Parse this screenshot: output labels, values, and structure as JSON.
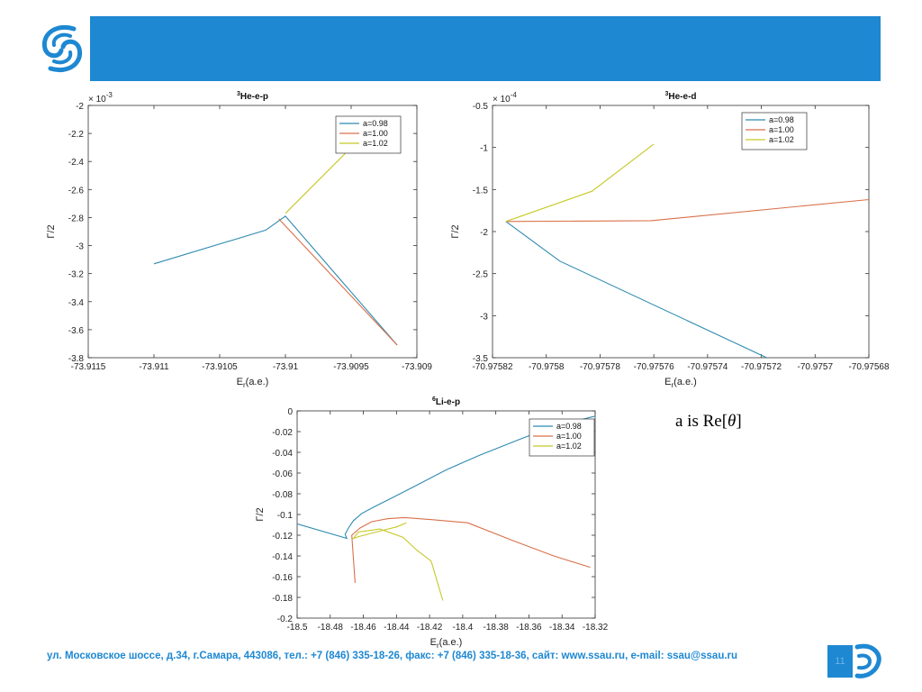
{
  "colors": {
    "brand": "#1E88D2",
    "series": [
      "#2E8BB0",
      "#D9704A",
      "#C8C828"
    ]
  },
  "note": {
    "prefix": "a is Re[",
    "theta": "θ",
    "suffix": "]"
  },
  "footer": {
    "text": "ул. Московское шоссе, д.34, г.Самара, 443086, тел.: +7 (846) 335-18-26, факс: +7 (846) 335-18-36, сайт: www.ssau.ru, e-mail: ssau@ssau.ru",
    "page": "11"
  },
  "chart_data": [
    {
      "type": "line",
      "title_sup": "3",
      "title": "He-e-p",
      "ylabel": "Γ/2",
      "xlabel_main": "E",
      "xlabel_sub": "r",
      "xlabel_rest": "(a.e.)",
      "exponent_base": "× 10",
      "exponent": "-3",
      "xlim": [
        -73.9115,
        -73.909
      ],
      "ylim": [
        -3.8,
        -2.0
      ],
      "xticks": [
        -73.9115,
        -73.911,
        -73.9105,
        -73.91,
        -73.9095,
        -73.909
      ],
      "xtick_labels": [
        "-73.9115",
        "-73.911",
        "-73.9105",
        "-73.91",
        "-73.9095",
        "-73.909"
      ],
      "yticks": [
        -2,
        -2.2,
        -2.4,
        -2.6,
        -2.8,
        -3,
        -3.2,
        -3.4,
        -3.6,
        -3.8
      ],
      "ytick_labels": [
        "-2",
        "-2.2",
        "-2.4",
        "-2.6",
        "-2.8",
        "-3",
        "-3.2",
        "-3.4",
        "-3.6",
        "-3.8"
      ],
      "legend": "top-right",
      "series": [
        {
          "name": "a=0.98",
          "points": [
            [
              -73.911,
              -3.13
            ],
            [
              -73.91015,
              -2.89
            ],
            [
              -73.91,
              -2.79
            ],
            [
              -73.90915,
              -3.71
            ]
          ]
        },
        {
          "name": "a=1.00",
          "points": [
            [
              -73.91005,
              -2.81
            ],
            [
              -73.90915,
              -3.71
            ]
          ]
        },
        {
          "name": "a=1.02",
          "points": [
            [
              -73.91,
              -2.77
            ],
            [
              -73.9095,
              -2.3
            ],
            [
              -73.90935,
              -2.2
            ]
          ]
        }
      ]
    },
    {
      "type": "line",
      "title_sup": "3",
      "title": "He-e-d",
      "ylabel": "Γ/2",
      "xlabel_main": "E",
      "xlabel_sub": "r",
      "xlabel_rest": "(a.e.)",
      "exponent_base": "× 10",
      "exponent": "-4",
      "xlim": [
        -70.97582,
        -70.97568
      ],
      "ylim": [
        -3.5,
        -0.5
      ],
      "xticks": [
        -70.97582,
        -70.9758,
        -70.97578,
        -70.97576,
        -70.97574,
        -70.97572,
        -70.9757,
        -70.97568
      ],
      "xtick_labels": [
        "-70.97582",
        "-70.9758",
        "-70.97578",
        "-70.97576",
        "-70.97574",
        "-70.97572",
        "-70.9757",
        "-70.97568"
      ],
      "yticks": [
        -0.5,
        -1,
        -1.5,
        -2,
        -2.5,
        -3,
        -3.5
      ],
      "ytick_labels": [
        "-0.5",
        "-1",
        "-1.5",
        "-2",
        "-2.5",
        "-3",
        "-3.5"
      ],
      "legend": "top-right",
      "series": [
        {
          "name": "a=0.98",
          "points": [
            [
              -70.975815,
              -1.88
            ],
            [
              -70.975795,
              -2.35
            ],
            [
              -70.975718,
              -3.5
            ]
          ]
        },
        {
          "name": "a=1.00",
          "points": [
            [
              -70.975815,
              -1.88
            ],
            [
              -70.975761,
              -1.87
            ],
            [
              -70.97568,
              -1.62
            ]
          ]
        },
        {
          "name": "a=1.02",
          "points": [
            [
              -70.975815,
              -1.88
            ],
            [
              -70.975783,
              -1.52
            ],
            [
              -70.97576,
              -0.96
            ]
          ]
        }
      ]
    },
    {
      "type": "line",
      "title_sup": "6",
      "title": "Li-e-p",
      "ylabel": "Γ/2",
      "xlabel_main": "E",
      "xlabel_sub": "r",
      "xlabel_rest": "(a.e.)",
      "xlim": [
        -18.5,
        -18.32
      ],
      "ylim": [
        -0.2,
        0
      ],
      "xticks": [
        -18.5,
        -18.48,
        -18.46,
        -18.44,
        -18.42,
        -18.4,
        -18.38,
        -18.36,
        -18.34,
        -18.32
      ],
      "xtick_labels": [
        "-18.5",
        "-18.48",
        "-18.46",
        "-18.44",
        "-18.42",
        "-18.4",
        "-18.38",
        "-18.36",
        "-18.34",
        "-18.32"
      ],
      "yticks": [
        0,
        -0.02,
        -0.04,
        -0.06,
        -0.08,
        -0.1,
        -0.12,
        -0.14,
        -0.16,
        -0.18,
        -0.2
      ],
      "ytick_labels": [
        "0",
        "-0.02",
        "-0.04",
        "-0.06",
        "-0.08",
        "-0.1",
        "-0.12",
        "-0.14",
        "-0.16",
        "-0.18",
        "-0.2"
      ],
      "legend": "top-right",
      "series": [
        {
          "name": "a=0.98",
          "points": [
            [
              -18.5,
              -0.109
            ],
            [
              -18.47,
              -0.123
            ],
            [
              -18.471,
              -0.119
            ],
            [
              -18.469,
              -0.113
            ],
            [
              -18.466,
              -0.106
            ],
            [
              -18.461,
              -0.099
            ],
            [
              -18.454,
              -0.093
            ],
            [
              -18.444,
              -0.085
            ],
            [
              -18.428,
              -0.072
            ],
            [
              -18.41,
              -0.057
            ],
            [
              -18.39,
              -0.043
            ],
            [
              -18.365,
              -0.027
            ],
            [
              -18.345,
              -0.015
            ],
            [
              -18.32,
              -0.005
            ]
          ]
        },
        {
          "name": "a=1.00",
          "points": [
            [
              -18.465,
              -0.166
            ],
            [
              -18.467,
              -0.12
            ],
            [
              -18.462,
              -0.113
            ],
            [
              -18.455,
              -0.107
            ],
            [
              -18.445,
              -0.104
            ],
            [
              -18.435,
              -0.103
            ],
            [
              -18.418,
              -0.105
            ],
            [
              -18.397,
              -0.108
            ],
            [
              -18.37,
              -0.125
            ],
            [
              -18.345,
              -0.14
            ],
            [
              -18.323,
              -0.151
            ]
          ]
        },
        {
          "name": "a=1.02",
          "points": [
            [
              -18.412,
              -0.183
            ],
            [
              -18.419,
              -0.145
            ],
            [
              -18.428,
              -0.134
            ],
            [
              -18.436,
              -0.122
            ],
            [
              -18.45,
              -0.114
            ],
            [
              -18.463,
              -0.117
            ],
            [
              -18.466,
              -0.123
            ],
            [
              -18.462,
              -0.121
            ],
            [
              -18.45,
              -0.116
            ],
            [
              -18.44,
              -0.112
            ],
            [
              -18.434,
              -0.108
            ]
          ]
        }
      ]
    }
  ]
}
